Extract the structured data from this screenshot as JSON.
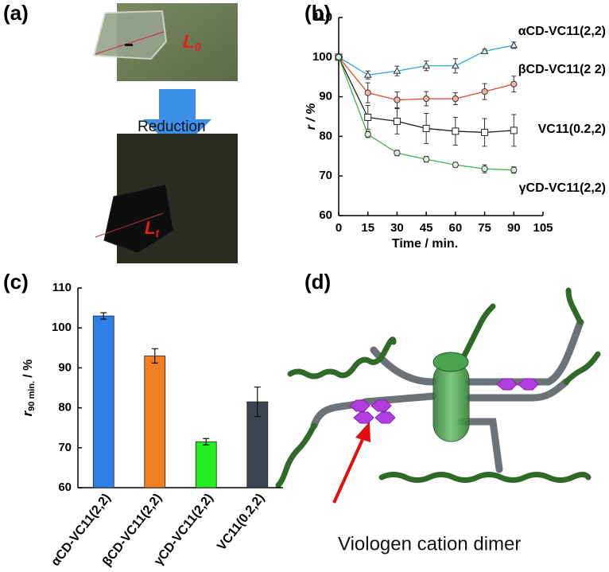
{
  "panels": {
    "a": {
      "label": "(a)",
      "arrow_text": "Reduction",
      "length_before": {
        "symbol": "L",
        "subscript": "0"
      },
      "length_after": {
        "symbol": "L",
        "subscript": "t"
      }
    },
    "b": {
      "label": "(b)"
    },
    "c": {
      "label": "(c)"
    },
    "d": {
      "label": "(d)",
      "annotation": "Viologen cation dimer"
    }
  },
  "chart_data": [
    {
      "type": "line",
      "x_label": "Time / min.",
      "y_label": "r / %",
      "x": [
        0,
        15,
        30,
        45,
        60,
        75,
        90
      ],
      "xlim": [
        0,
        105
      ],
      "xticks": [
        0,
        15,
        30,
        45,
        60,
        75,
        90,
        105
      ],
      "ylim": [
        60,
        110
      ],
      "yticks": [
        60,
        70,
        80,
        90,
        100,
        110
      ],
      "series": [
        {
          "name": "αCD-VC11(2,2)",
          "color": "#29a8e0",
          "marker": "triangle",
          "values": [
            100,
            95.5,
            96.5,
            97.8,
            97.8,
            101.5,
            103
          ],
          "errors": [
            0,
            1,
            1.2,
            1.2,
            1.8,
            0.5,
            0.8
          ]
        },
        {
          "name": "βCD-VC11(2 2)",
          "color": "#e8452c",
          "marker": "circle",
          "values": [
            100,
            91,
            89.2,
            89.5,
            89.5,
            91.3,
            93.2
          ],
          "errors": [
            0,
            2.5,
            2,
            1.8,
            1.5,
            2,
            2
          ]
        },
        {
          "name": "VC11(0.2,2)",
          "color": "#222222",
          "marker": "square",
          "values": [
            100,
            84.8,
            83.8,
            82,
            81.3,
            81,
            81.5
          ],
          "errors": [
            0,
            3,
            3.2,
            3.8,
            3.5,
            3.5,
            4
          ]
        },
        {
          "name": "γCD-VC11(2,2)",
          "color": "#3ab54a",
          "marker": "circle",
          "values": [
            100,
            80.5,
            75.8,
            74.2,
            72.8,
            71.8,
            71.5
          ],
          "errors": [
            0,
            0.8,
            0.7,
            0.7,
            0.6,
            1,
            0.8
          ]
        }
      ]
    },
    {
      "type": "bar",
      "y_label": {
        "symbol": "r",
        "subscript": "90 min.",
        "unit": "/ %"
      },
      "categories": [
        "αCD-VC11(2,2)",
        "βCD-VC11(2,2)",
        "γCD-VC11(2,2)",
        "VC11(0.2,2)"
      ],
      "values": [
        103,
        93,
        71.5,
        81.5
      ],
      "errors": [
        0.8,
        1.8,
        0.8,
        3.7
      ],
      "colors": [
        "#2f7fe6",
        "#ee7f22",
        "#22ee22",
        "#3a4550"
      ],
      "ylim": [
        60,
        110
      ],
      "yticks": [
        60,
        70,
        80,
        90,
        100,
        110
      ]
    }
  ]
}
